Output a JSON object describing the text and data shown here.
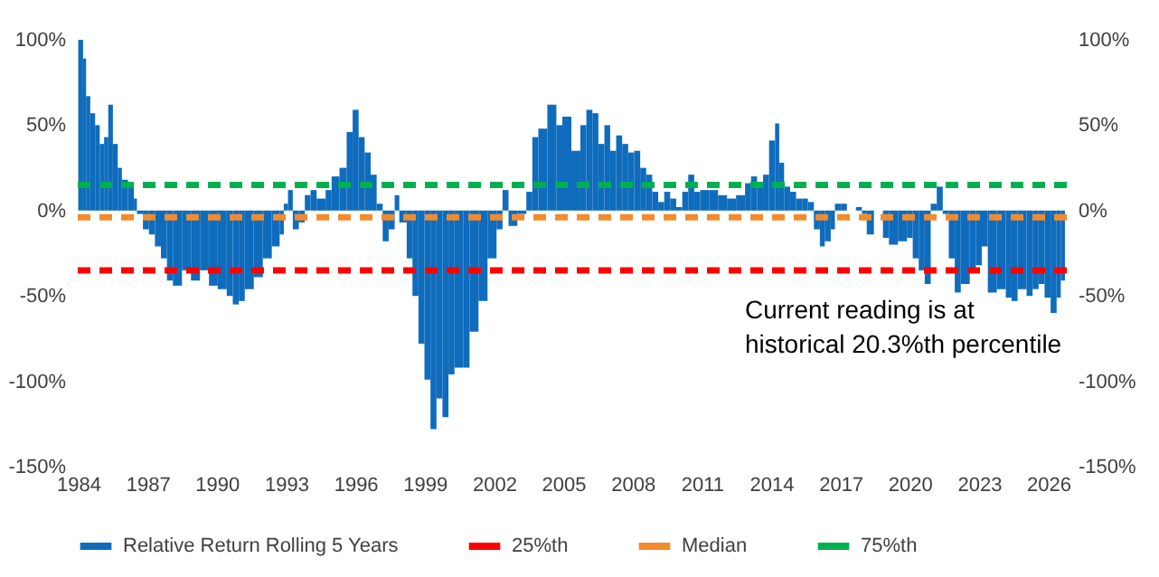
{
  "chart_data": {
    "type": "bar",
    "legend": "bottom",
    "grid": false,
    "x": [
      1984.0,
      1984.21,
      1984.34,
      1984.52,
      1984.73,
      1984.93,
      1985.12,
      1985.3,
      1985.5,
      1985.71,
      1985.89,
      1986.15,
      1986.41,
      1986.54,
      1986.8,
      1987.06,
      1987.32,
      1987.58,
      1987.84,
      1988.1,
      1988.49,
      1988.88,
      1989.27,
      1989.66,
      1990.04,
      1990.43,
      1990.69,
      1990.95,
      1991.21,
      1991.6,
      1991.99,
      1992.38,
      1992.72,
      1992.9,
      1993.08,
      1993.29,
      1993.55,
      1993.81,
      1994.06,
      1994.32,
      1994.71,
      1994.97,
      1995.31,
      1995.62,
      1995.88,
      1996.14,
      1996.4,
      1996.66,
      1996.92,
      1997.18,
      1997.44,
      1997.7,
      1997.9,
      1998.22,
      1998.47,
      1998.73,
      1998.99,
      1999.25,
      1999.51,
      1999.77,
      2000.03,
      2000.29,
      2000.68,
      2000.94,
      2001.33,
      2001.72,
      2002.11,
      2002.37,
      2002.63,
      2003.01,
      2003.4,
      2003.66,
      2003.92,
      2004.31,
      2004.7,
      2004.96,
      2005.35,
      2005.74,
      2006.0,
      2006.26,
      2006.52,
      2006.78,
      2007.03,
      2007.29,
      2007.55,
      2007.81,
      2008.07,
      2008.33,
      2008.59,
      2008.85,
      2009.11,
      2009.37,
      2009.63,
      2009.89,
      2010.15,
      2010.41,
      2010.67,
      2010.93,
      2011.31,
      2011.7,
      2012.09,
      2012.48,
      2012.87,
      2013.13,
      2013.39,
      2013.65,
      2013.91,
      2014.17,
      2014.35,
      2014.56,
      2014.82,
      2015.08,
      2015.34,
      2015.59,
      2015.85,
      2016.11,
      2016.32,
      2016.58,
      2016.76,
      2017.02,
      2017.28,
      2017.67,
      2017.93,
      2018.14,
      2018.45,
      2018.84,
      2019.1,
      2019.49,
      2019.88,
      2020.13,
      2020.39,
      2020.65,
      2020.91,
      2021.17,
      2021.43,
      2021.69,
      2021.95,
      2022.21,
      2022.6,
      2022.86,
      2023.12,
      2023.38,
      2023.77,
      2024.16,
      2024.41,
      2024.67,
      2025.06,
      2025.32,
      2025.58,
      2025.84,
      2026.1,
      2026.36,
      2026.54
    ],
    "series": [
      {
        "name": "Relative Return Rolling 5 Years",
        "color": "#0f6cbd",
        "values": [
          100,
          89,
          67,
          57,
          50,
          39,
          43,
          62,
          39,
          25,
          18,
          16,
          7,
          -2,
          -11,
          -14,
          -21,
          -28,
          -41,
          -44,
          -35,
          -41,
          -35,
          -44,
          -46,
          -50,
          -55,
          -53,
          -46,
          -39,
          -28,
          -21,
          -14,
          4,
          12,
          -11,
          -7,
          9,
          12,
          7,
          12,
          20,
          25,
          46,
          59,
          43,
          34,
          21,
          4,
          -18,
          -11,
          9,
          -7,
          -28,
          -50,
          -78,
          -99,
          -128,
          -110,
          -121,
          -96,
          -92,
          -92,
          -71,
          -53,
          -28,
          -11,
          12,
          -9,
          -2,
          11,
          43,
          48,
          62,
          50,
          55,
          35,
          50,
          59,
          57,
          39,
          50,
          35,
          44,
          39,
          34,
          35,
          25,
          21,
          11,
          5,
          11,
          7,
          2,
          11,
          21,
          11,
          12,
          12,
          9,
          7,
          9,
          16,
          20,
          14,
          21,
          41,
          51,
          28,
          14,
          11,
          7,
          7,
          5,
          -11,
          -21,
          -18,
          -11,
          4,
          4,
          0,
          2,
          -2,
          -14,
          0,
          -16,
          -20,
          -18,
          -16,
          -28,
          -35,
          -43,
          4,
          14,
          -2,
          -28,
          -48,
          -43,
          -35,
          -32,
          -21,
          -48,
          -46,
          -51,
          -53,
          -46,
          -50,
          -46,
          -43,
          -51,
          -60,
          -51,
          -41
        ]
      }
    ],
    "xlim": [
      1983.9,
      2026.8
    ],
    "xticks": [
      1984,
      1987,
      1990,
      1993,
      1996,
      1999,
      2002,
      2005,
      2008,
      2011,
      2014,
      2017,
      2020,
      2023,
      2026
    ],
    "ylim": [
      -150,
      100
    ],
    "yticks": [
      {
        "value": -150,
        "label": "-150%"
      },
      {
        "value": -100,
        "label": "-100%"
      },
      {
        "value": -50,
        "label": "-50%"
      },
      {
        "value": 0,
        "label": "0%"
      },
      {
        "value": 50,
        "label": "50%"
      },
      {
        "value": 100,
        "label": "100%"
      }
    ],
    "y2lim": [
      -150,
      100
    ],
    "y2ticks": [
      {
        "value": -150,
        "label": "-150%"
      },
      {
        "value": -100,
        "label": "-100%"
      },
      {
        "value": -50,
        "label": "-50%"
      },
      {
        "value": 0,
        "label": "0%"
      },
      {
        "value": 50,
        "label": "50%"
      },
      {
        "value": 100,
        "label": "100%"
      }
    ],
    "ref_lines": [
      {
        "axis": "y",
        "value": -35,
        "label": "25%th",
        "color": "#ff0000",
        "line_style": "dashed"
      },
      {
        "axis": "y",
        "value": -4,
        "label": "Median",
        "color": "#f38b2d",
        "line_style": "dashed"
      },
      {
        "axis": "y",
        "value": 15,
        "label": "75%th",
        "color": "#00b050",
        "line_style": "dashed"
      }
    ],
    "annotations": [
      "Current reading is at\nhistorical 20.3%th percentile"
    ]
  }
}
